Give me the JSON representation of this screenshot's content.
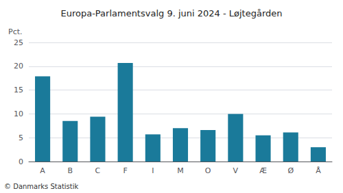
{
  "chart_data": {
    "type": "bar",
    "title": "Europa-Parlamentsvalg 9. juni 2024 - Løjtegården",
    "ylabel": "Pct.",
    "annotations": [
      "© Danmarks Statistik"
    ],
    "categories": [
      "A",
      "B",
      "C",
      "F",
      "I",
      "M",
      "O",
      "V",
      "Æ",
      "Ø",
      "Å"
    ],
    "values": [
      17.9,
      8.5,
      9.4,
      20.7,
      5.7,
      7.0,
      6.6,
      10.0,
      5.5,
      6.1,
      3.0
    ],
    "color": "#1a7a9a",
    "ylim": [
      0,
      25
    ],
    "yticks": [
      0,
      5,
      10,
      15,
      20,
      25
    ],
    "grid": true
  }
}
